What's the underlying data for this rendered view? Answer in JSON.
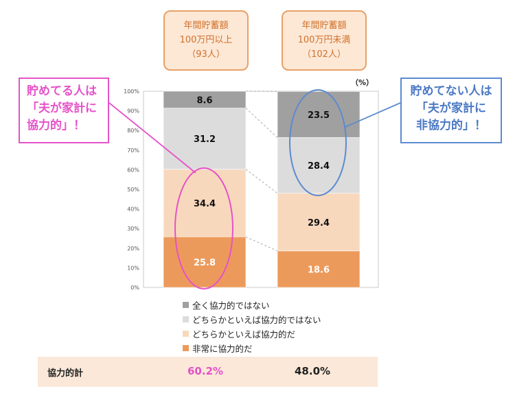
{
  "groups": [
    {
      "line1": "年間貯蓄額",
      "line2": "100万円以上",
      "line3": "（93人）"
    },
    {
      "line1": "年間貯蓄額",
      "line2": "100万円未満",
      "line3": "（102人）"
    }
  ],
  "callouts": {
    "left": {
      "line1": "貯めてる人は",
      "line2": "「夫が家計に",
      "line3": "協力的」！"
    },
    "right": {
      "line1": "貯めてない人は",
      "line2": "「夫が家計に",
      "line3": "非協力的」！"
    }
  },
  "chart_data": {
    "type": "bar",
    "stacked": true,
    "unit_label": "（%）",
    "ylim": [
      0,
      100
    ],
    "y_ticks": [
      "0%",
      "10%",
      "20%",
      "30%",
      "40%",
      "50%",
      "60%",
      "70%",
      "80%",
      "90%",
      "100%"
    ],
    "categories": [
      "年間貯蓄額100万円以上（93人）",
      "年間貯蓄額100万円未満（102人）"
    ],
    "series": [
      {
        "name": "非常に協力的だ",
        "color": "#ec9a5b",
        "label_color": "#ffffff",
        "values": [
          25.8,
          18.6
        ]
      },
      {
        "name": "どちらかといえば協力的だ",
        "color": "#f8d8bd",
        "label_color": "#111111",
        "values": [
          34.4,
          29.4
        ]
      },
      {
        "name": "どちらかといえば協力的ではない",
        "color": "#dcdcdc",
        "label_color": "#111111",
        "values": [
          31.2,
          28.4
        ]
      },
      {
        "name": "全く協力的ではない",
        "color": "#a0a0a0",
        "label_color": "#111111",
        "values": [
          8.6,
          23.5
        ]
      }
    ],
    "colors": {
      "pink_highlight": "#e552c8",
      "blue_highlight": "#5b8ad0"
    }
  },
  "totals": {
    "label": "協力的計",
    "values": [
      "60.2%",
      "48.0%"
    ]
  }
}
